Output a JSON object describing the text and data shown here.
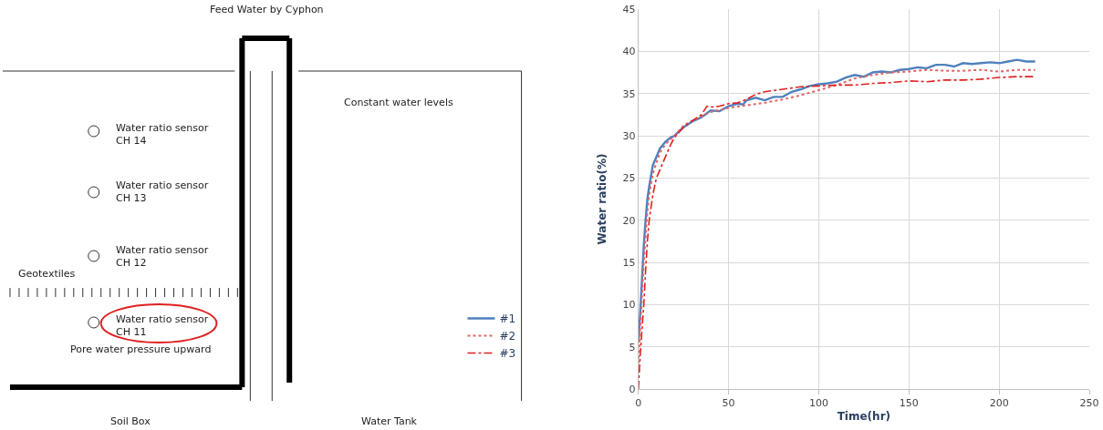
{
  "chart_data": [
    {
      "type": "other",
      "annotations": [
        "Feed Water by Cyphon",
        "Constant water levels",
        "Water ratio sensor\nCH 14",
        "Water ratio sensor\nCH 13",
        "Water ratio sensor\nCH 12",
        "Geotextiles",
        "Water ratio sensor\nCH 11",
        "Pore water pressure upward",
        "Soil Box",
        "Water Tank"
      ]
    },
    {
      "type": "line",
      "xlabel": "Time(hr)",
      "ylabel": "Water ratio(%)",
      "xlim": [
        0,
        250
      ],
      "xticks": [
        0,
        50,
        100,
        150,
        200,
        250
      ],
      "ylim": [
        0,
        45
      ],
      "yticks": [
        0,
        5,
        10,
        15,
        20,
        25,
        30,
        35,
        40,
        45
      ],
      "grid": true,
      "legend": "bottom",
      "marker": "none",
      "series": [
        {
          "name": "#1",
          "color": "#4f81bd",
          "line_style": "solid",
          "x": [
            0,
            1,
            2,
            3,
            4,
            5,
            6,
            8,
            10,
            12,
            15,
            18,
            20,
            25,
            30,
            35,
            40,
            45,
            50,
            55,
            58,
            60,
            65,
            70,
            75,
            80,
            85,
            90,
            95,
            100,
            105,
            110,
            115,
            120,
            125,
            130,
            135,
            140,
            145,
            150,
            155,
            160,
            165,
            170,
            175,
            180,
            185,
            190,
            195,
            200,
            205,
            210,
            215,
            220
          ],
          "values": [
            5.5,
            9,
            13,
            17,
            20,
            22.5,
            24,
            26.5,
            27.5,
            28.5,
            29.3,
            29.8,
            30,
            31,
            31.7,
            32.2,
            33,
            32.9,
            33.5,
            33.8,
            33.7,
            34.2,
            34.5,
            34.2,
            34.6,
            34.6,
            35.2,
            35.5,
            35.9,
            36.1,
            36.2,
            36.4,
            36.9,
            37.2,
            37,
            37.5,
            37.6,
            37.5,
            37.8,
            37.9,
            38.1,
            38,
            38.4,
            38.4,
            38.2,
            38.6,
            38.5,
            38.6,
            38.7,
            38.6,
            38.8,
            39,
            38.8,
            38.8
          ]
        },
        {
          "name": "#2",
          "color": "#e06666",
          "line_style": "dotted",
          "x": [
            0,
            1,
            2,
            3,
            4,
            5,
            6,
            8,
            10,
            12,
            15,
            20,
            25,
            30,
            35,
            40,
            50,
            60,
            70,
            80,
            90,
            100,
            110,
            120,
            130,
            140,
            150,
            160,
            170,
            180,
            190,
            200,
            210,
            220
          ],
          "values": [
            3,
            7,
            11,
            15,
            18,
            21,
            23,
            25.5,
            26.8,
            28,
            29,
            30,
            31.2,
            31.8,
            32.3,
            32.8,
            33.3,
            33.6,
            33.9,
            34.3,
            34.8,
            35.4,
            36,
            36.8,
            37.2,
            37.5,
            37.6,
            37.8,
            37.7,
            37.7,
            37.8,
            37.6,
            37.8,
            37.8
          ]
        },
        {
          "name": "#3",
          "color": "#e02020",
          "line_style": "dashed",
          "x": [
            0,
            1,
            2,
            3,
            4,
            5,
            6,
            8,
            10,
            12,
            15,
            18,
            20,
            25,
            30,
            35,
            38,
            40,
            45,
            50,
            55,
            60,
            65,
            70,
            80,
            90,
            100,
            110,
            120,
            130,
            140,
            150,
            160,
            170,
            180,
            190,
            200,
            210,
            220
          ],
          "values": [
            0,
            4,
            7,
            10,
            14,
            17.5,
            20,
            23,
            25,
            26,
            27.5,
            29,
            29.8,
            31,
            31.8,
            32.5,
            33.5,
            33.4,
            33.5,
            33.8,
            33.9,
            34.3,
            34.9,
            35.2,
            35.5,
            35.8,
            35.9,
            36,
            36,
            36.2,
            36.3,
            36.5,
            36.4,
            36.6,
            36.6,
            36.7,
            36.9,
            37,
            37
          ]
        }
      ]
    }
  ]
}
